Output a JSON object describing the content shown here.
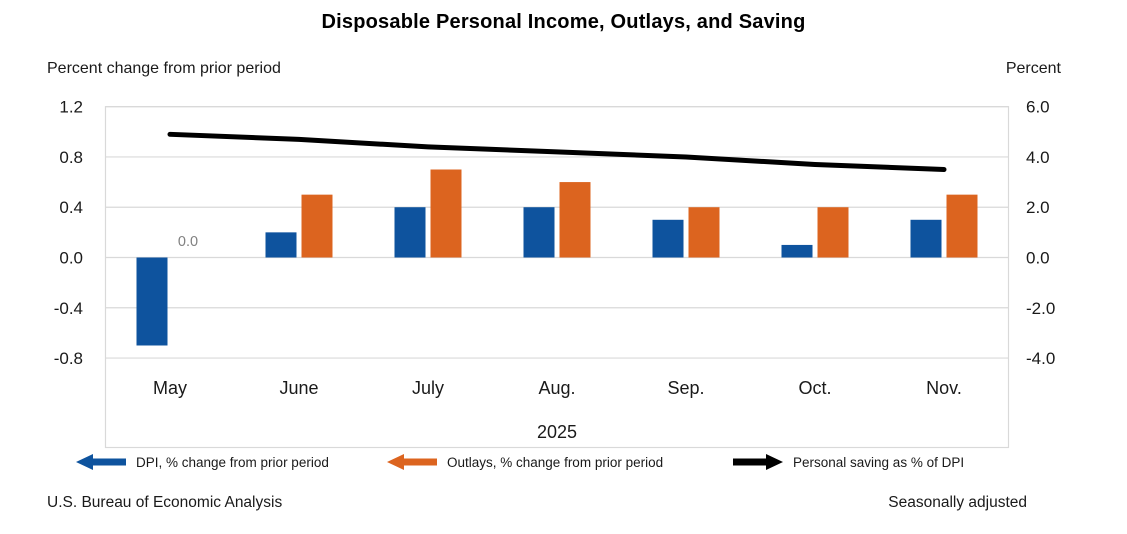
{
  "title": "Disposable Personal Income, Outlays, and Saving",
  "axes": {
    "left_title": "Percent change from prior period",
    "right_title": "Percent"
  },
  "legend": {
    "items": [
      {
        "label": "DPI, % change from prior period",
        "color": "#0E539E",
        "direction": "left"
      },
      {
        "label": "Outlays, % change from prior period",
        "color": "#DC641F",
        "direction": "left"
      },
      {
        "label": "Personal saving as % of DPI",
        "color": "#000000",
        "direction": "right"
      }
    ]
  },
  "footer": {
    "source": "U.S. Bureau of Economic Analysis",
    "note": "Seasonally adjusted"
  },
  "chart_data": {
    "type": "bar",
    "subtype": "grouped bars + line combo",
    "title": "Disposable Personal Income, Outlays, and Saving",
    "categories": [
      "May",
      "June",
      "July",
      "Aug.",
      "Sep.",
      "Oct.",
      "Nov."
    ],
    "x_axis_year": "2025",
    "series": [
      {
        "name": "DPI, % change from prior period",
        "type": "bar",
        "axis": "left",
        "color": "#0E539E",
        "values": [
          -0.7,
          0.2,
          0.4,
          0.4,
          0.3,
          0.1,
          0.3
        ]
      },
      {
        "name": "Outlays, % change from prior period",
        "type": "bar",
        "axis": "left",
        "color": "#DC641F",
        "values": [
          0.0,
          0.5,
          0.7,
          0.6,
          0.4,
          0.4,
          0.5
        ]
      },
      {
        "name": "Personal saving as % of DPI",
        "type": "line",
        "axis": "right",
        "color": "#000000",
        "values": [
          4.9,
          4.7,
          4.4,
          4.2,
          4.0,
          3.7,
          3.5
        ]
      }
    ],
    "left_axis": {
      "title": "Percent change from prior period",
      "tick_labels": [
        "1.2",
        "0.8",
        "0.4",
        "0.0",
        "-0.4",
        "-0.8"
      ],
      "range": [
        -0.8,
        1.2
      ]
    },
    "right_axis": {
      "title": "Percent",
      "tick_labels": [
        "6.0",
        "4.0",
        "2.0",
        "0.0",
        "-2.0",
        "-4.0"
      ],
      "range": [
        -4.0,
        6.0
      ]
    },
    "annotations": [
      {
        "text": "0.0",
        "series": "Outlays, % change from prior period",
        "category": "May",
        "color": "#808080"
      }
    ],
    "grid": true,
    "gridline_color": "#D9D9D9",
    "legend_position": "bottom"
  }
}
